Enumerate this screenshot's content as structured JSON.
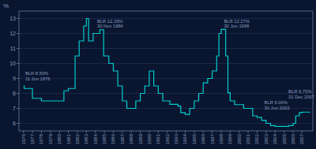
{
  "chart_data": {
    "type": "line",
    "y_label": "%",
    "color": "#00cccc",
    "xlim": [
      1975.5,
      2008.2
    ],
    "xticks": [
      1976,
      1977,
      1978,
      1979,
      1980,
      1981,
      1982,
      1983,
      1984,
      1985,
      1986,
      1987,
      1988,
      1989,
      1990,
      1991,
      1992,
      1993,
      1994,
      1995,
      1996,
      1997,
      1998,
      1999,
      2000,
      2001,
      2002,
      2003,
      2004,
      2005,
      2006,
      2007
    ],
    "ylim": [
      5.5,
      13.5
    ],
    "yticks": [
      6,
      7,
      8,
      9,
      10,
      11,
      12,
      13
    ],
    "grid": "y",
    "annotations": [
      {
        "text": "BLR 8.50%\n11 Jun 1976",
        "x": 1976.2,
        "y": 8.8
      },
      {
        "text": "BLR 12.25%\n30 Nov 1984",
        "x": 1984.2,
        "y": 12.3
      },
      {
        "text": "BLR 12.27%\n30 Jun 1998",
        "x": 1998.3,
        "y": 12.3
      },
      {
        "text": "BLR 6.00%\n30 Jun 2003",
        "x": 2002.8,
        "y": 6.85
      },
      {
        "text": "BLR 6.75%\n31 Dec 2007",
        "x": 2005.8,
        "y": 6.8
      }
    ],
    "x": [
      1976.0,
      1976.08,
      1976.08,
      1977.0,
      1977.0,
      1978.0,
      1978.0,
      1980.5,
      1980.5,
      1981.0,
      1981.0,
      1981.75,
      1981.75,
      1982.2,
      1982.2,
      1982.7,
      1982.7,
      1983.0,
      1983.0,
      1983.25,
      1983.25,
      1983.75,
      1983.75,
      1984.5,
      1984.5,
      1984.92,
      1984.92,
      1985.5,
      1985.5,
      1986.0,
      1986.0,
      1986.5,
      1986.5,
      1987.0,
      1987.0,
      1987.5,
      1987.5,
      1988.5,
      1988.5,
      1989.0,
      1989.0,
      1989.5,
      1989.5,
      1990.0,
      1990.0,
      1990.5,
      1990.5,
      1991.0,
      1991.0,
      1991.5,
      1991.5,
      1992.3,
      1992.3,
      1993.2,
      1993.2,
      1993.5,
      1993.5,
      1994.0,
      1994.0,
      1994.5,
      1994.5,
      1995.0,
      1995.0,
      1995.5,
      1995.5,
      1996.0,
      1996.0,
      1996.5,
      1996.5,
      1997.0,
      1997.0,
      1997.5,
      1997.5,
      1997.75,
      1997.75,
      1998.0,
      1998.0,
      1998.5,
      1998.5,
      1998.75,
      1998.75,
      1999.0,
      1999.0,
      1999.5,
      1999.5,
      2000.5,
      2000.5,
      2001.5,
      2001.5,
      2002.0,
      2002.0,
      2002.5,
      2002.5,
      2003.0,
      2003.0,
      2003.5,
      2003.5,
      2004.0,
      2004.0,
      2005.5,
      2005.5,
      2006.0,
      2006.0,
      2006.3,
      2006.3,
      2006.7,
      2006.7,
      2007.0,
      2007.0,
      2007.92
    ],
    "values": [
      8.5,
      8.5,
      8.33,
      8.33,
      7.67,
      7.67,
      7.5,
      7.5,
      8.17,
      8.17,
      8.33,
      8.33,
      10.5,
      10.5,
      11.5,
      11.5,
      12.5,
      12.5,
      13.0,
      13.0,
      11.5,
      11.5,
      12.0,
      12.0,
      12.25,
      12.25,
      10.5,
      10.5,
      10.0,
      10.0,
      9.5,
      9.5,
      8.5,
      8.5,
      7.5,
      7.5,
      7.0,
      7.0,
      7.5,
      7.5,
      8.0,
      8.0,
      8.5,
      8.5,
      9.5,
      9.5,
      8.5,
      8.5,
      8.0,
      8.0,
      7.5,
      7.5,
      7.27,
      7.27,
      7.15,
      7.15,
      6.72,
      6.72,
      6.6,
      6.6,
      7.0,
      7.0,
      7.5,
      7.5,
      8.0,
      8.0,
      8.7,
      8.7,
      9.0,
      9.0,
      9.5,
      9.5,
      10.5,
      10.5,
      12.0,
      12.0,
      12.27,
      12.27,
      10.5,
      10.5,
      8.05,
      8.05,
      7.5,
      7.5,
      7.25,
      7.25,
      7.0,
      7.0,
      6.5,
      6.5,
      6.4,
      6.4,
      6.2,
      6.2,
      6.0,
      6.0,
      5.85,
      5.85,
      5.8,
      5.8,
      5.85,
      5.85,
      6.0,
      6.0,
      6.5,
      6.5,
      6.72,
      6.72,
      6.75,
      6.75
    ]
  }
}
